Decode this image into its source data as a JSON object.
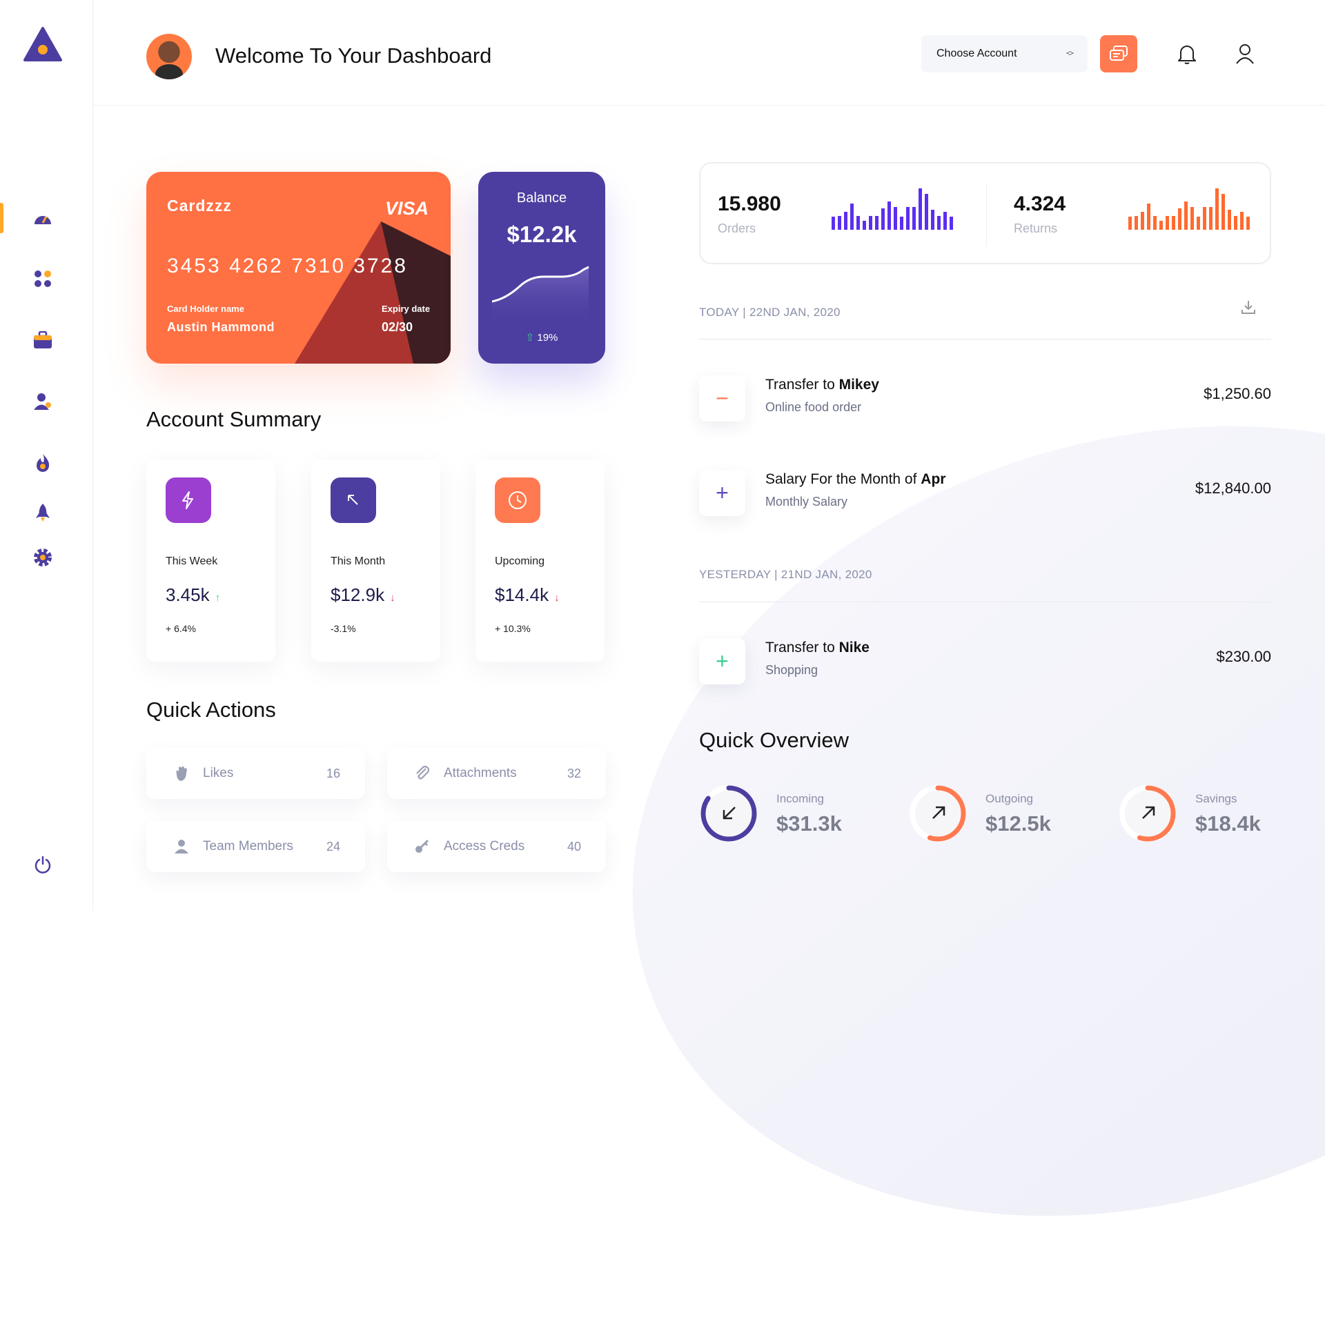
{
  "header": {
    "title": "Welcome To Your Dashboard",
    "account_select": "Choose Account"
  },
  "sidebar": {
    "items": [
      "dashboard",
      "apps",
      "portfolio",
      "users",
      "trending",
      "launch",
      "settings"
    ],
    "logout": "power"
  },
  "card": {
    "brand": "Cardzzz",
    "network": "VISA",
    "number": "3453 4262 7310 3728",
    "holder_label": "Card Holder name",
    "holder": "Austin Hammond",
    "expiry_label": "Expiry date",
    "expiry": "02/30"
  },
  "balance": {
    "label": "Balance",
    "value": "$12.2k",
    "change": "19%"
  },
  "account_summary": {
    "title": "Account Summary",
    "cards": [
      {
        "label": "This Week",
        "value": "3.45k",
        "change": "+ 6.4%",
        "trend": "up",
        "color": "#9b3fd0"
      },
      {
        "label": "This Month",
        "value": "$12.9k",
        "change": "-3.1%",
        "trend": "down",
        "color": "#4c3ea0"
      },
      {
        "label": "Upcoming",
        "value": "$14.4k",
        "change": "+ 10.3%",
        "trend": "down",
        "color": "#ff7a50"
      }
    ]
  },
  "quick_actions": {
    "title": "Quick Actions",
    "items": [
      {
        "label": "Likes",
        "count": "16",
        "icon": "hand-icon"
      },
      {
        "label": "Attachments",
        "count": "32",
        "icon": "paperclip-icon"
      },
      {
        "label": "Team Members",
        "count": "24",
        "icon": "user-icon"
      },
      {
        "label": "Access Creds",
        "count": "40",
        "icon": "key-icon"
      }
    ]
  },
  "stats": {
    "orders": {
      "value": "15.980",
      "label": "Orders",
      "color": "#5b2ef0"
    },
    "returns": {
      "value": "4.324",
      "label": "Returns",
      "color": "#ff6a30"
    },
    "bar_levels": [
      55,
      60,
      76,
      112,
      60,
      37,
      60,
      60,
      92,
      122,
      96,
      55,
      97,
      97,
      176,
      152,
      85,
      60,
      76,
      55
    ]
  },
  "transactions": {
    "groups": [
      {
        "date": "TODAY | 22ND JAN, 2020",
        "items": [
          {
            "prefix": "Transfer to ",
            "bold": "Mikey",
            "sub": "Online food order",
            "amount": "$1,250.60",
            "sign": "−"
          },
          {
            "prefix": "Salary For the Month of ",
            "bold": "Apr",
            "sub": "Monthly Salary",
            "amount": "$12,840.00",
            "sign": "+"
          }
        ]
      },
      {
        "date": "YESTERDAY | 21ND JAN, 2020",
        "items": [
          {
            "prefix": "Transfer to ",
            "bold": "Nike",
            "sub": "Shopping",
            "amount": "$230.00",
            "sign": "+"
          }
        ]
      }
    ]
  },
  "overview": {
    "title": "Quick Overview",
    "items": [
      {
        "label": "Incoming",
        "value": "$31.3k",
        "progress": 0.85,
        "color": "#4c3ea0"
      },
      {
        "label": "Outgoing",
        "value": "$12.5k",
        "progress": 0.55,
        "color": "#ff7a50"
      },
      {
        "label": "Savings",
        "value": "$18.4k",
        "progress": 0.55,
        "color": "#ff7a50"
      }
    ]
  }
}
